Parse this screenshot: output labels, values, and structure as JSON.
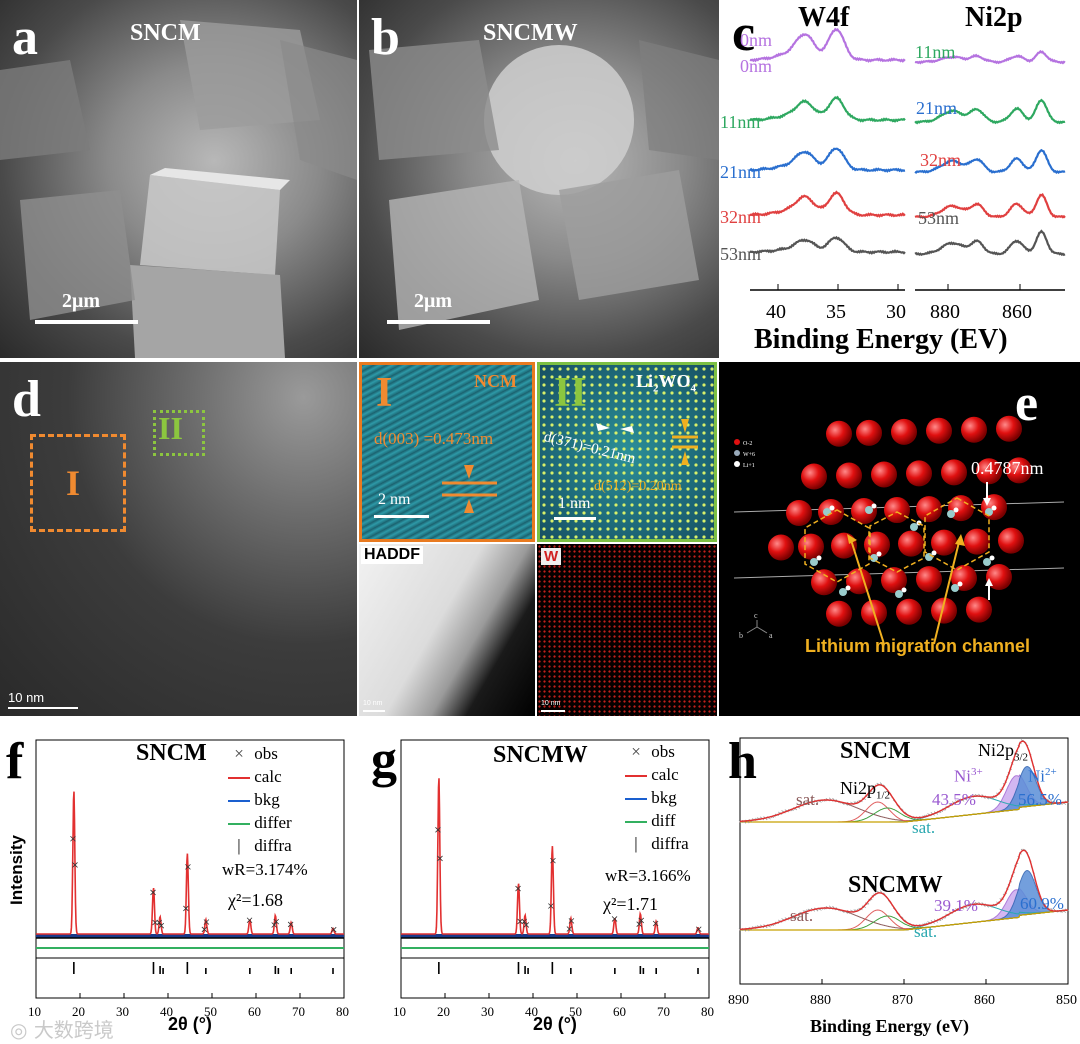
{
  "panels": {
    "a": {
      "label": "a",
      "title": "SNCM",
      "scale": "2μm"
    },
    "b": {
      "label": "b",
      "title": "SNCMW",
      "scale": "2μm"
    },
    "c": {
      "label": "c",
      "left_title": "W4f",
      "right_title": "Ni2p",
      "xlabel": "Binding Energy (EV)",
      "left_ticks": [
        "40",
        "35",
        "30"
      ],
      "right_ticks": [
        "880",
        "860"
      ],
      "depths": [
        "0nm",
        "11nm",
        "21nm",
        "32nm",
        "53nm"
      ],
      "depth_colors": [
        "#b573e0",
        "#2ea860",
        "#2a6fcf",
        "#e04040",
        "#555555"
      ]
    },
    "d": {
      "label": "d",
      "box1": "I",
      "box2": "II",
      "scale": "10 nm",
      "inset1": {
        "label": "I",
        "phase": "NCM",
        "d": "d(003) =0.473nm",
        "scale": "2 nm"
      },
      "inset2": {
        "label": "II",
        "phase": "Li",
        "phase_sub": "2",
        "phase_end": "WO",
        "phase_sub2": "4",
        "d1": "d(371)=0.21nm",
        "d2": "d(512)=0.20nm",
        "scale": "1 nm"
      },
      "haddf": {
        "label": "HADDF",
        "scale": "10 nm"
      },
      "wmap": {
        "label": "W",
        "scale": "10 nm"
      }
    },
    "e": {
      "label": "e",
      "dist": "0.4787nm",
      "caption": "Lithium migration channel",
      "legend": [
        "O-2",
        "W+6",
        "Li+1"
      ],
      "axes": [
        "b",
        "c",
        "a"
      ]
    },
    "f": {
      "label": "f",
      "title": "SNCM",
      "legend": [
        "obs",
        "calc",
        "bkg",
        "differ",
        "diffra"
      ],
      "wr": "wR=3.174%",
      "chi": "χ²=1.68",
      "xlabel": "2θ (°)",
      "ylabel": "Intensity",
      "ticks": [
        "10",
        "20",
        "30",
        "40",
        "50",
        "60",
        "70",
        "80"
      ]
    },
    "g": {
      "label": "g",
      "title": "SNCMW",
      "legend": [
        "obs",
        "calc",
        "bkg",
        "diff",
        "diffra"
      ],
      "wr": "wR=3.166%",
      "chi": "χ²=1.71",
      "xlabel": "2θ (°)",
      "ticks": [
        "10",
        "20",
        "30",
        "40",
        "50",
        "60",
        "70",
        "80"
      ]
    },
    "h": {
      "label": "h",
      "title1": "SNCM",
      "title2": "SNCMW",
      "xlabel": "Binding Energy (eV)",
      "ticks": [
        "890",
        "880",
        "870",
        "860",
        "850"
      ],
      "sat": "sat.",
      "ni12": "Ni2p",
      "ni12_sub": "1/2",
      "ni32": "Ni2p",
      "ni32_sub": "3/2",
      "ni3": "Ni",
      "ni3_sup": "3+",
      "ni2": "Ni",
      "ni2_sup": "2+",
      "p1a": "43.5%",
      "p1b": "56.5%",
      "p2a": "39.1%",
      "p2b": "60.9%"
    }
  },
  "watermark": "大数跨境",
  "chart_data": [
    {
      "type": "line",
      "title": "W4f",
      "xlabel": "Binding Energy (EV)",
      "xlim": [
        40,
        30
      ],
      "series": [
        {
          "name": "0nm"
        },
        {
          "name": "11nm"
        },
        {
          "name": "21nm"
        },
        {
          "name": "32nm"
        },
        {
          "name": "53nm"
        }
      ]
    },
    {
      "type": "line",
      "title": "Ni2p",
      "xlabel": "Binding Energy (EV)",
      "xlim": [
        890,
        845
      ],
      "series": [
        {
          "name": "0nm"
        },
        {
          "name": "11nm"
        },
        {
          "name": "21nm"
        },
        {
          "name": "32nm"
        },
        {
          "name": "53nm"
        }
      ]
    },
    {
      "type": "line",
      "title": "SNCM",
      "xlabel": "2θ (°)",
      "ylabel": "Intensity",
      "xlim": [
        10,
        80
      ],
      "peaks_x": [
        18.6,
        36.7,
        38.2,
        44.4,
        48.6,
        58.6,
        64.4,
        68.0,
        77.5
      ],
      "series": [
        {
          "name": "obs"
        },
        {
          "name": "calc"
        },
        {
          "name": "bkg"
        },
        {
          "name": "differ"
        },
        {
          "name": "diffra"
        }
      ]
    },
    {
      "type": "line",
      "title": "SNCMW",
      "xlabel": "2θ (°)",
      "xlim": [
        10,
        80
      ],
      "peaks_x": [
        18.6,
        36.7,
        38.2,
        44.4,
        48.6,
        58.6,
        64.4,
        68.0,
        77.5
      ],
      "series": [
        {
          "name": "obs"
        },
        {
          "name": "calc"
        },
        {
          "name": "bkg"
        },
        {
          "name": "diff"
        },
        {
          "name": "diffra"
        }
      ]
    },
    {
      "type": "line",
      "xlabel": "Binding Energy (eV)",
      "xlim": [
        890,
        850
      ],
      "samples": [
        "SNCM",
        "SNCMW"
      ],
      "ni3_percent": [
        43.5,
        39.1
      ],
      "ni2_percent": [
        56.5,
        60.9
      ]
    }
  ]
}
